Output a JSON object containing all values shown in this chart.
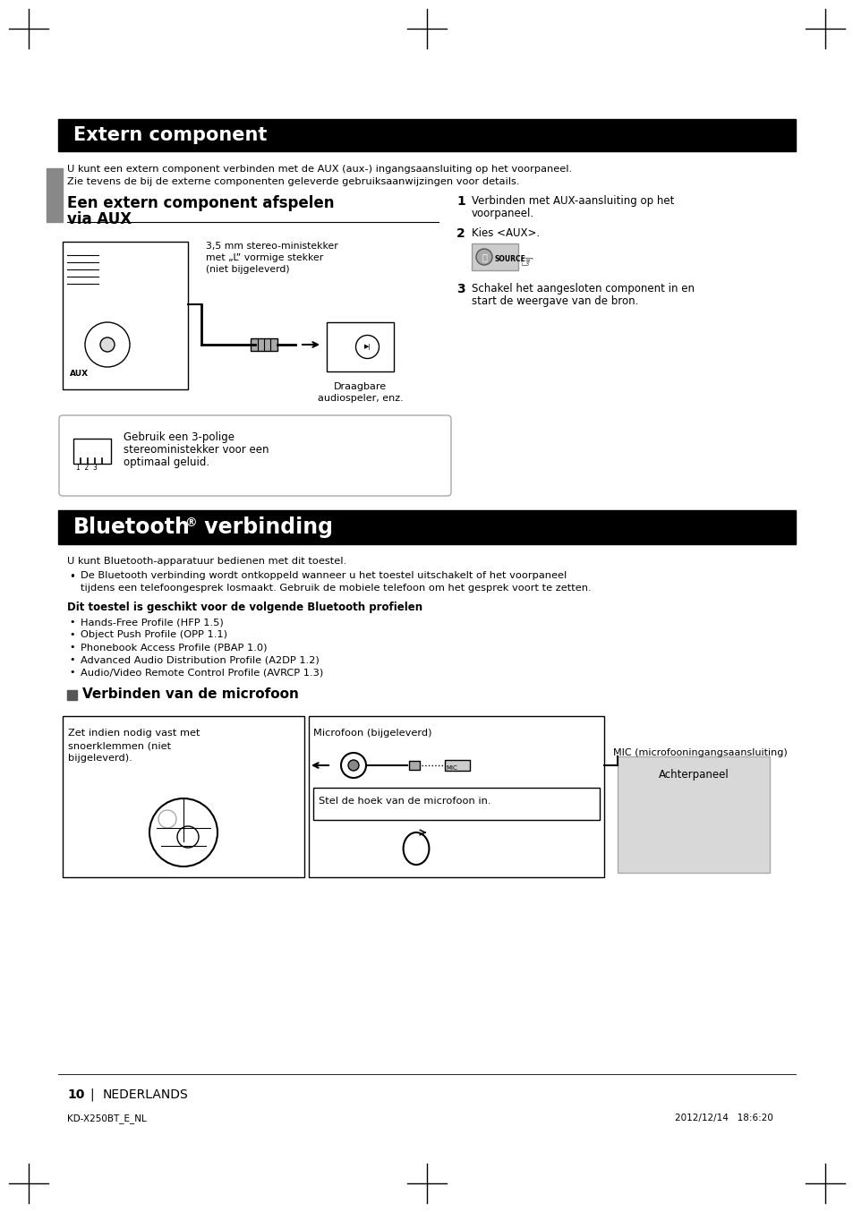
{
  "page_bg": "#ffffff",
  "header_bg": "#000000",
  "header_text_color": "#ffffff",
  "body_text_color": "#000000",
  "gray_sidebar_color": "#888888",
  "section1_title": "Extern component",
  "section1_body1": "U kunt een extern component verbinden met de AUX (aux-) ingangsaansluiting op het voorpaneel.",
  "section1_body2": "Zie tevens de bij de externe componenten geleverde gebruiksaanwijzingen voor details.",
  "subsection1_title_line1": "Een extern component afspelen",
  "subsection1_title_line2": "via AUX",
  "aux_label1": "3,5 mm stereo-ministekker",
  "aux_label2": "met „L” vormige stekker",
  "aux_label3": "(niet bijgeleverd)",
  "draagbare_label1": "Draagbare",
  "draagbare_label2": "audiospeler, enz.",
  "note_text1": "Gebruik een 3-polige",
  "note_text2": "stereoministekker voor een",
  "note_text3": "optimaal geluid.",
  "step1_num": "1",
  "step2_num": "2",
  "step2_text": "Kies <AUX>.",
  "step3_num": "3",
  "source_label": "SOURCE",
  "section2_title_part1": "Bluetooth",
  "section2_title_sup": "®",
  "section2_title_part2": " verbinding",
  "section2_body": "U kunt Bluetooth-apparatuur bedienen met dit toestel.",
  "bullet1_line1": "De Bluetooth verbinding wordt ontkoppeld wanneer u het toestel uitschakelt of het voorpaneel",
  "bullet1_line2": "tijdens een telefoongesprek losmaakt. Gebruik de mobiele telefoon om het gesprek voort te zetten.",
  "bold_text": "Dit toestel is geschikt voor de volgende Bluetooth profielen",
  "profile1": "Hands-Free Profile (HFP 1.5)",
  "profile2": "Object Push Profile (OPP 1.1)",
  "profile3": "Phonebook Access Profile (PBAP 1.0)",
  "profile4": "Advanced Audio Distribution Profile (A2DP 1.2)",
  "profile5": "Audio/Video Remote Control Profile (AVRCP 1.3)",
  "mic_section_title": "Verbinden van de microfoon",
  "mic_box1_line1": "Zet indien nodig vast met",
  "mic_box1_line2": "snoerklemmen (niet",
  "mic_box1_line3": "bijgeleverd).",
  "mic_label": "Microfoon (bijgeleverd)",
  "mic_input_label": "MIC (microfooningangsaansluiting)",
  "achterpaneel_label": "Achterpaneel",
  "stel_label": "Stel de hoek van de microfoon in.",
  "page_num": "10",
  "page_lang": "NEDERLANDS",
  "footer_left": "KD-X250BT_E_NL",
  "footer_right": "2012/12/14   18:6:20",
  "step1_line1": "Verbinden met AUX-aansluiting op het",
  "step1_line2": "voorpaneel.",
  "step3_line1": "Schakel het aangesloten component in en",
  "step3_line2": "start de weergave van de bron."
}
